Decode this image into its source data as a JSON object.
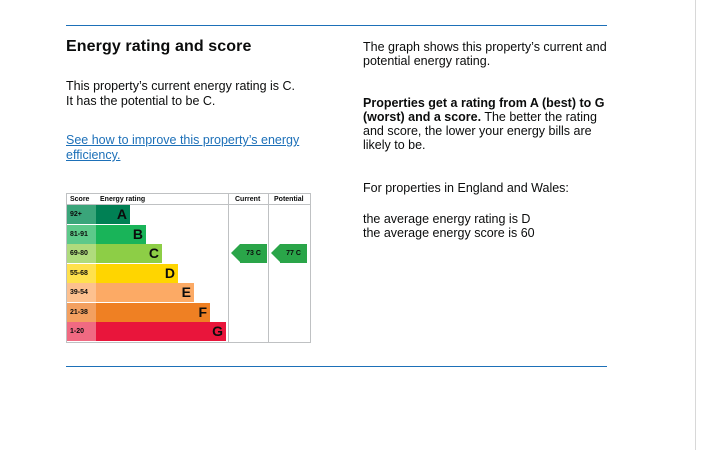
{
  "section": {
    "title": "Energy rating and score",
    "current_text_line1": "This property’s current energy rating is C.",
    "current_text_line2": "It has the potential to be C.",
    "improve_link": "See how to improve this property’s energy efficiency."
  },
  "explainer": {
    "graph_text": "The graph shows this property’s current and potential energy rating.",
    "rating_bold": "Properties get a rating from A (best) to G (worst) and a score.",
    "rating_rest": " The better the rating and score, the lower your energy bills are likely to be.",
    "region_text": "For properties in England and Wales:",
    "average_rating": "the average energy rating is D",
    "average_score": "the average energy score is 60"
  },
  "chart_data": {
    "type": "table",
    "headers": {
      "score": "Score",
      "rating": "Energy rating",
      "current": "Current",
      "potential": "Potential"
    },
    "bands": [
      {
        "range": "92+",
        "letter": "A",
        "color": "#008054",
        "range_color": "#3aa57a"
      },
      {
        "range": "81-91",
        "letter": "B",
        "color": "#19b459",
        "range_color": "#5dc98a"
      },
      {
        "range": "69-80",
        "letter": "C",
        "color": "#8dce46",
        "range_color": "#afdb7d"
      },
      {
        "range": "55-68",
        "letter": "D",
        "color": "#ffd500",
        "range_color": "#ffe14d"
      },
      {
        "range": "39-54",
        "letter": "E",
        "color": "#fcaa65",
        "range_color": "#fdc18f"
      },
      {
        "range": "21-38",
        "letter": "F",
        "color": "#ef8023",
        "range_color": "#f3a060"
      },
      {
        "range": "1-20",
        "letter": "G",
        "color": "#e9153b",
        "range_color": "#f06a82"
      }
    ],
    "current": {
      "score": 73,
      "rating": "C",
      "label": "73 C"
    },
    "potential": {
      "score": 77,
      "rating": "C",
      "label": "77 C"
    },
    "arrow_color": "#2aa549"
  }
}
